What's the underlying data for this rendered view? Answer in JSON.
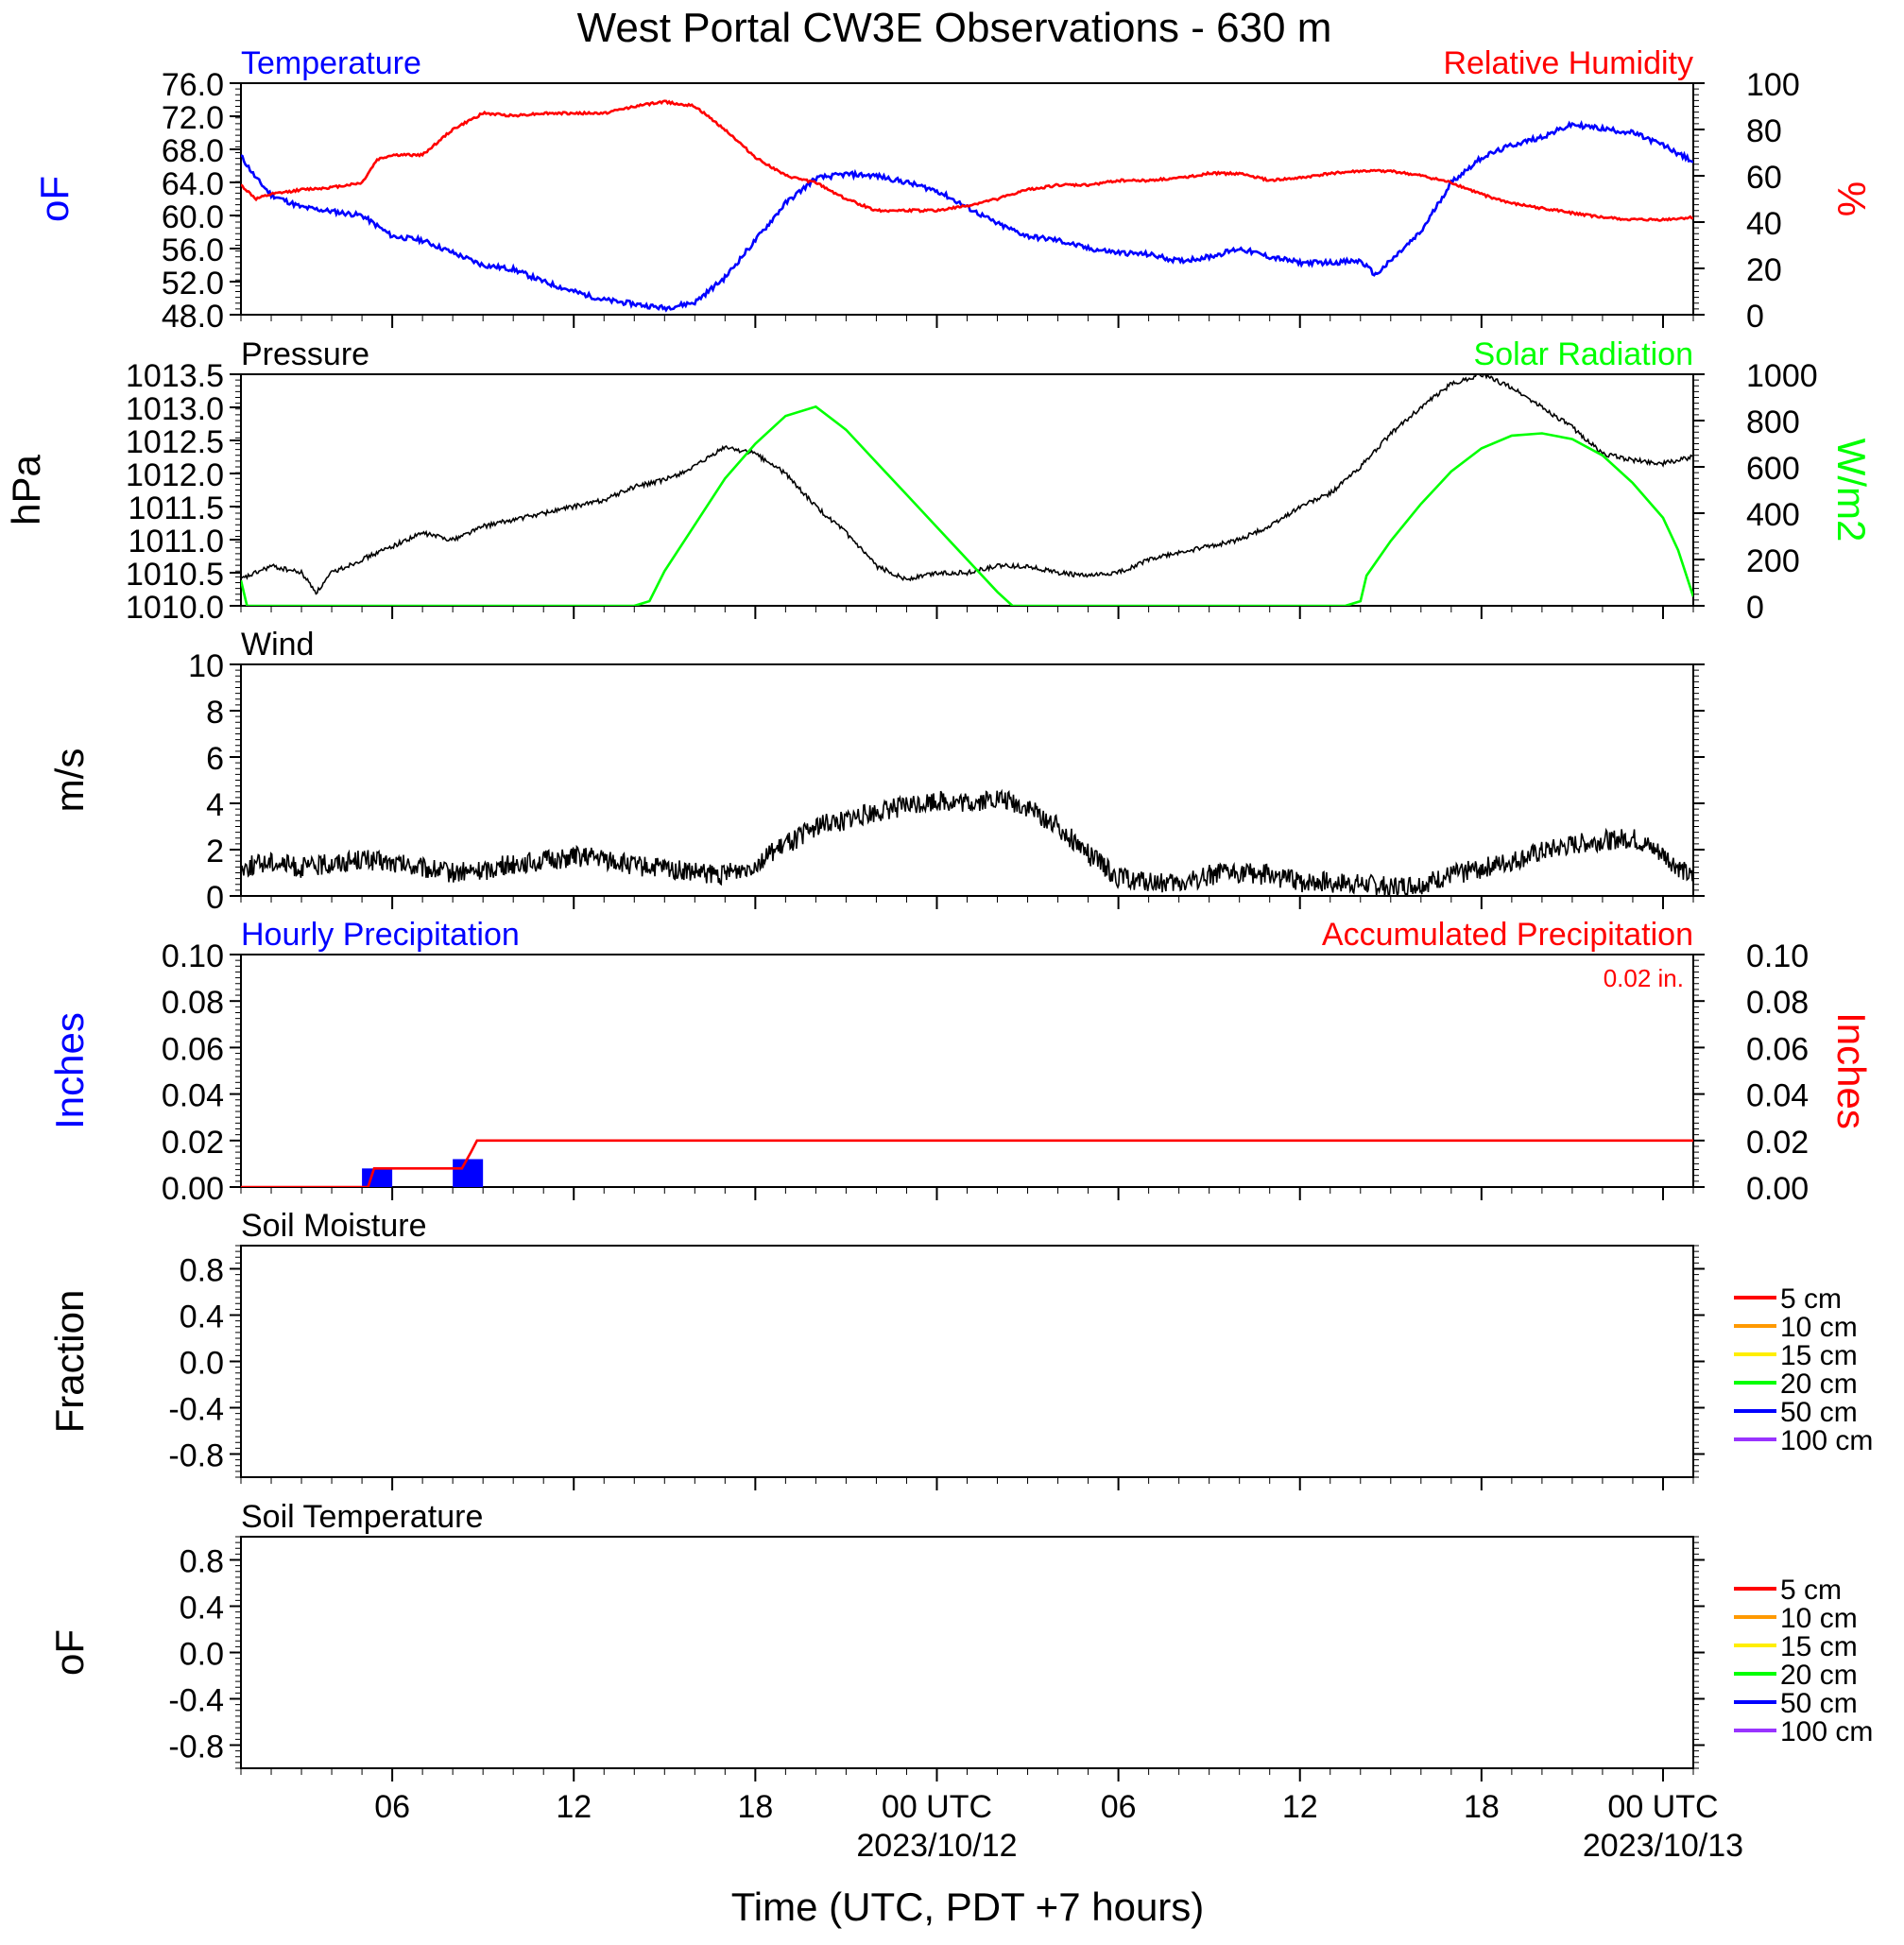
{
  "title": "West Portal CW3E Observations - 630 m",
  "colors": {
    "temperature": "#0000ff",
    "humidity": "#ff0000",
    "pressure": "#000000",
    "solar": "#00ff00",
    "wind": "#000000",
    "barb": "#ff0000",
    "hourly_precip": "#0000ff",
    "accum_precip": "#ff0000",
    "soil": [
      "#ff0000",
      "#ff9900",
      "#ffee00",
      "#00ff00",
      "#0000ff",
      "#9933ff"
    ]
  },
  "x_axis": {
    "ticks": [
      {
        "hour": 6,
        "label": "06",
        "sub": ""
      },
      {
        "hour": 12,
        "label": "12",
        "sub": ""
      },
      {
        "hour": 18,
        "label": "18",
        "sub": ""
      },
      {
        "hour": 24,
        "label": "00 UTC",
        "sub": "2023/10/12"
      },
      {
        "hour": 30,
        "label": "06",
        "sub": ""
      },
      {
        "hour": 36,
        "label": "12",
        "sub": ""
      },
      {
        "hour": 42,
        "label": "18",
        "sub": ""
      },
      {
        "hour": 48,
        "label": "00 UTC",
        "sub": "2023/10/13"
      }
    ],
    "title": "Time (UTC, PDT +7 hours)",
    "range_hours": [
      1,
      49
    ]
  },
  "chart_data": [
    {
      "type": "line",
      "title": "",
      "left_title": "Temperature",
      "right_title": "Relative Humidity",
      "left_ylabel": "oF",
      "right_ylabel": "%",
      "left_ylim": [
        48,
        76
      ],
      "right_ylim": [
        0,
        100
      ],
      "left_ticks": [
        "76.0",
        "72.0",
        "68.0",
        "64.0",
        "60.0",
        "56.0",
        "52.0",
        "48.0"
      ],
      "right_ticks": [
        "100",
        "80",
        "60",
        "40",
        "20",
        "0"
      ],
      "series": [
        {
          "name": "Temperature",
          "axis": "left",
          "x": [
            1,
            1.5,
            2,
            3,
            4,
            5,
            6,
            7,
            8,
            9,
            10,
            11,
            12,
            13,
            14,
            15,
            16,
            17,
            18,
            19,
            20,
            21,
            22,
            23,
            24,
            25,
            26,
            27,
            28,
            29,
            30,
            31,
            32,
            33,
            34,
            35,
            36,
            37,
            38,
            38.5,
            39,
            40,
            41,
            42,
            43,
            44,
            45,
            46,
            47,
            48,
            49
          ],
          "y": [
            67.2,
            64.5,
            62.5,
            61,
            60.5,
            60,
            57.5,
            57,
            55.5,
            54,
            53.5,
            52,
            50.8,
            49.8,
            49.3,
            48.8,
            49.5,
            52.5,
            57,
            61.5,
            64.5,
            65,
            64.8,
            64,
            63,
            61,
            59,
            57.5,
            57,
            56,
            55.5,
            55.3,
            54.5,
            55,
            56,
            55,
            54.3,
            54.3,
            54.5,
            52.8,
            54.5,
            58,
            64,
            67,
            68.5,
            69.5,
            71,
            70.5,
            70,
            68.5,
            66.5
          ]
        },
        {
          "name": "Relative Humidity",
          "axis": "right",
          "x": [
            1,
            1.5,
            2,
            3,
            4,
            5,
            5.5,
            6,
            7,
            8,
            9,
            10,
            11,
            12,
            13,
            14,
            15,
            16,
            17,
            18,
            19,
            20,
            21,
            22,
            23,
            24,
            25,
            26,
            27,
            28,
            29,
            30,
            31,
            32,
            33,
            34,
            35,
            36,
            37,
            38,
            39,
            40,
            41,
            42,
            43,
            44,
            45,
            46,
            47,
            48,
            49
          ],
          "y": [
            56,
            50,
            52,
            54,
            55,
            57,
            67,
            69,
            69,
            80,
            87,
            86,
            87,
            87,
            87,
            90,
            92,
            90,
            80,
            68,
            60,
            57,
            50,
            45,
            45,
            45,
            47,
            50,
            54,
            56,
            56,
            58,
            58,
            59,
            61,
            61,
            58,
            59,
            61,
            62,
            62,
            60,
            57,
            52,
            48,
            46,
            44,
            42,
            41,
            41,
            42
          ]
        }
      ]
    },
    {
      "type": "line",
      "title": "",
      "left_title": "Pressure",
      "right_title": "Solar Radiation",
      "left_ylabel": "hPa",
      "right_ylabel": "W/m2",
      "left_ylim": [
        1010,
        1013.5
      ],
      "right_ylim": [
        0,
        1000
      ],
      "left_ticks": [
        "1013.5",
        "1013.0",
        "1012.5",
        "1012.0",
        "1011.5",
        "1011.0",
        "1010.5",
        "1010.0"
      ],
      "right_ticks": [
        "1000",
        "800",
        "600",
        "400",
        "200",
        "0"
      ],
      "series": [
        {
          "name": "Pressure",
          "axis": "left",
          "x": [
            1,
            2,
            3,
            3.5,
            4,
            5,
            6,
            7,
            8,
            9,
            10,
            11,
            12,
            13,
            14,
            15,
            16,
            17,
            18,
            19,
            20,
            21,
            22,
            23,
            24,
            25,
            26,
            27,
            28,
            29,
            30,
            31,
            32,
            33,
            34,
            35,
            36,
            37,
            38,
            39,
            40,
            41,
            42,
            43,
            44,
            45,
            46,
            47,
            48,
            49
          ],
          "y": [
            1010.4,
            1010.6,
            1010.5,
            1010.2,
            1010.5,
            1010.7,
            1010.9,
            1011.1,
            1011.0,
            1011.2,
            1011.3,
            1011.4,
            1011.5,
            1011.6,
            1011.8,
            1011.9,
            1012.1,
            1012.4,
            1012.3,
            1012.0,
            1011.5,
            1011.1,
            1010.6,
            1010.4,
            1010.5,
            1010.5,
            1010.6,
            1010.6,
            1010.5,
            1010.45,
            1010.5,
            1010.7,
            1010.8,
            1010.9,
            1011.0,
            1011.2,
            1011.5,
            1011.7,
            1012.1,
            1012.6,
            1013.0,
            1013.35,
            1013.5,
            1013.3,
            1013.0,
            1012.7,
            1012.3,
            1012.2,
            1012.15,
            1012.25
          ]
        },
        {
          "name": "Solar Radiation",
          "axis": "right",
          "x": [
            1,
            1.2,
            2,
            14,
            14.5,
            15,
            16,
            17,
            18,
            19,
            20,
            21,
            22,
            23,
            24,
            25,
            26,
            26.5,
            27,
            37.5,
            38,
            38.2,
            39,
            40,
            41,
            42,
            43,
            44,
            45,
            46,
            47,
            48,
            48.5,
            49
          ],
          "y": [
            110,
            0,
            0,
            0,
            20,
            150,
            350,
            550,
            700,
            820,
            860,
            760,
            620,
            480,
            340,
            200,
            60,
            0,
            0,
            0,
            20,
            130,
            280,
            440,
            580,
            680,
            735,
            745,
            720,
            650,
            530,
            380,
            240,
            40
          ]
        }
      ]
    },
    {
      "type": "line",
      "title": "",
      "left_title": "Wind",
      "left_ylabel": "m/s",
      "left_ylim": [
        0,
        10
      ],
      "left_ticks": [
        "10",
        "8",
        "6",
        "4",
        "2",
        "0"
      ],
      "series": [
        {
          "name": "Wind",
          "axis": "left",
          "x": [
            1,
            2,
            3,
            4,
            5,
            6,
            7,
            8,
            9,
            10,
            11,
            12,
            13,
            14,
            15,
            16,
            17,
            18,
            19,
            20,
            21,
            22,
            23,
            24,
            25,
            26,
            27,
            28,
            29,
            30,
            31,
            32,
            33,
            34,
            35,
            36,
            37,
            38,
            39,
            40,
            41,
            42,
            43,
            44,
            45,
            46,
            47,
            48,
            49
          ],
          "y": [
            1.2,
            1.5,
            1.2,
            1.4,
            1.6,
            1.4,
            1.2,
            1.0,
            1.1,
            1.4,
            1.5,
            1.7,
            1.6,
            1.3,
            1.2,
            1.0,
            0.9,
            1.4,
            2.2,
            3.0,
            3.3,
            3.6,
            3.9,
            4.1,
            4.0,
            4.2,
            3.8,
            3.0,
            1.8,
            0.8,
            0.6,
            0.5,
            0.9,
            1.0,
            0.9,
            0.6,
            0.6,
            0.5,
            0.4,
            0.5,
            0.9,
            1.2,
            1.5,
            1.9,
            2.2,
            2.4,
            2.5,
            1.8,
            0.7
          ]
        }
      ]
    },
    {
      "type": "bar",
      "title": "",
      "left_title": "Hourly Precipitation",
      "right_title": "Accumulated Precipitation",
      "annotation": "0.02 in.",
      "left_ylabel": "Inches",
      "right_ylabel": "Inches",
      "left_ylim": [
        0,
        0.1
      ],
      "right_ylim": [
        0,
        0.1
      ],
      "left_ticks": [
        "0.10",
        "0.08",
        "0.06",
        "0.04",
        "0.02",
        "0.00"
      ],
      "right_ticks": [
        "0.10",
        "0.08",
        "0.06",
        "0.04",
        "0.02",
        "0.00"
      ],
      "series": [
        {
          "name": "Hourly Precipitation",
          "axis": "left",
          "x": [
            5.5,
            8.5
          ],
          "y": [
            0.008,
            0.012
          ]
        },
        {
          "name": "Accumulated Precipitation",
          "axis": "right",
          "x": [
            1,
            5.2,
            5.4,
            8.3,
            8.6,
            8.8,
            49
          ],
          "y": [
            0,
            0,
            0.008,
            0.008,
            0.015,
            0.02,
            0.02
          ]
        }
      ]
    },
    {
      "type": "line",
      "title": "",
      "left_title": "Soil Moisture",
      "left_ylabel": "Fraction",
      "left_ylim": [
        -1,
        1
      ],
      "left_ticks": [
        "0.8",
        "0.4",
        "0.0",
        "-0.4",
        "-0.8"
      ],
      "legend": [
        "5 cm",
        "10 cm",
        "15 cm",
        "20 cm",
        "50 cm",
        "100 cm"
      ],
      "series": []
    },
    {
      "type": "line",
      "title": "",
      "left_title": "Soil Temperature",
      "left_ylabel": "oF",
      "left_ylim": [
        -1,
        1
      ],
      "left_ticks": [
        "0.8",
        "0.4",
        "0.0",
        "-0.4",
        "-0.8"
      ],
      "legend": [
        "5 cm",
        "10 cm",
        "15 cm",
        "20 cm",
        "50 cm",
        "100 cm"
      ],
      "series": []
    }
  ]
}
